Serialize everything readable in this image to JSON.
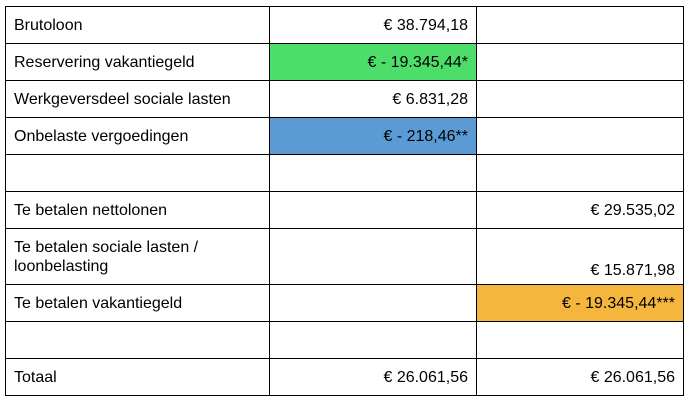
{
  "colors": {
    "green": "#4cdd6a",
    "blue": "#5b9bd5",
    "orange": "#f4b63c"
  },
  "rows": [
    {
      "label": "Brutoloon",
      "col2": "€ 38.794,18",
      "col3": "",
      "col2_fill": "",
      "col3_fill": ""
    },
    {
      "label": "Reservering vakantiegeld",
      "col2": "€ - 19.345,44*",
      "col3": "",
      "col2_fill": "green",
      "col3_fill": ""
    },
    {
      "label": "Werkgeversdeel sociale lasten",
      "col2": "€ 6.831,28",
      "col3": "",
      "col2_fill": "",
      "col3_fill": ""
    },
    {
      "label": "Onbelaste vergoedingen",
      "col2": "€ - 218,46**",
      "col3": "",
      "col2_fill": "blue",
      "col3_fill": ""
    },
    {
      "label": "",
      "col2": "",
      "col3": "",
      "col2_fill": "",
      "col3_fill": ""
    },
    {
      "label": "Te betalen nettolonen",
      "col2": "",
      "col3": "€ 29.535,02",
      "col2_fill": "",
      "col3_fill": ""
    },
    {
      "label": "Te betalen sociale lasten / loonbelasting",
      "col2": "",
      "col3": "€ 15.871,98",
      "col2_fill": "",
      "col3_fill": ""
    },
    {
      "label": "Te betalen vakantiegeld",
      "col2": "",
      "col3": "€ - 19.345,44***",
      "col2_fill": "",
      "col3_fill": "orange"
    },
    {
      "label": "",
      "col2": "",
      "col3": "",
      "col2_fill": "",
      "col3_fill": ""
    },
    {
      "label": "Totaal",
      "col2": "€ 26.061,56",
      "col3": "€ 26.061,56",
      "col2_fill": "",
      "col3_fill": ""
    }
  ]
}
